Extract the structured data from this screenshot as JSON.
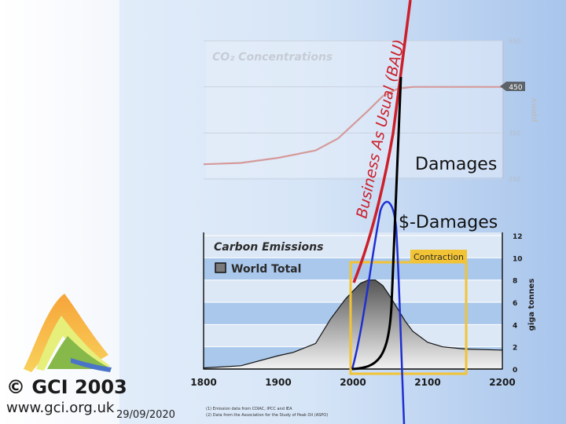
{
  "brand": {
    "copyright": "© GCI 2003",
    "url": "www.gci.org.uk",
    "date": "29/09/2020"
  },
  "notes": {
    "line1": "(1) Emission data from CDIAC, IPCC and IEA",
    "line2": "(2) Data from the Association for the Study of Peak Oil (ASPO)"
  },
  "annotations": {
    "bau": "Business As Usual (BAU)",
    "damages": "Damages",
    "dollar_damages": "$-Damages",
    "contraction": "Contraction"
  },
  "colors": {
    "bau": "#cc1f2b",
    "damages": "#000000",
    "dollar_damages": "#1f2fd0",
    "contraction_box": "#f2c335",
    "co2_line": "#d59a9a",
    "band": "#a9c8ec"
  },
  "chart_data": [
    {
      "type": "line",
      "title": "CO₂ Concentrations",
      "ylabel": "ppmv",
      "xlim": [
        1800,
        2200
      ],
      "ylim": [
        250,
        550
      ],
      "yticks": [
        "250",
        "350",
        "450",
        "550"
      ],
      "marker_value": "450",
      "x": [
        1800,
        1850,
        1900,
        1950,
        1980,
        2000,
        2020,
        2040,
        2060,
        2080,
        2200
      ],
      "values": [
        282,
        285,
        296,
        312,
        338,
        368,
        398,
        430,
        446,
        450,
        450
      ]
    },
    {
      "type": "area",
      "title": "Carbon Emissions",
      "legend": [
        "World Total"
      ],
      "ylabel": "giga tonnes",
      "xlim": [
        1800,
        2200
      ],
      "ylim": [
        0,
        12
      ],
      "xticks": [
        "1800",
        "1900",
        "2000",
        "2100",
        "2200"
      ],
      "yticks": [
        "0",
        "2",
        "4",
        "6",
        "8",
        "10",
        "12"
      ],
      "x": [
        1800,
        1850,
        1900,
        1920,
        1950,
        1970,
        1990,
        2000,
        2010,
        2020,
        2030,
        2040,
        2050,
        2060,
        2070,
        2080,
        2100,
        2120,
        2150,
        2200
      ],
      "values": [
        0.1,
        0.3,
        1.2,
        1.5,
        2.3,
        4.5,
        6.3,
        7.0,
        7.7,
        8.0,
        8.0,
        7.5,
        6.5,
        5.4,
        4.3,
        3.4,
        2.4,
        2.0,
        1.8,
        1.7
      ]
    }
  ]
}
